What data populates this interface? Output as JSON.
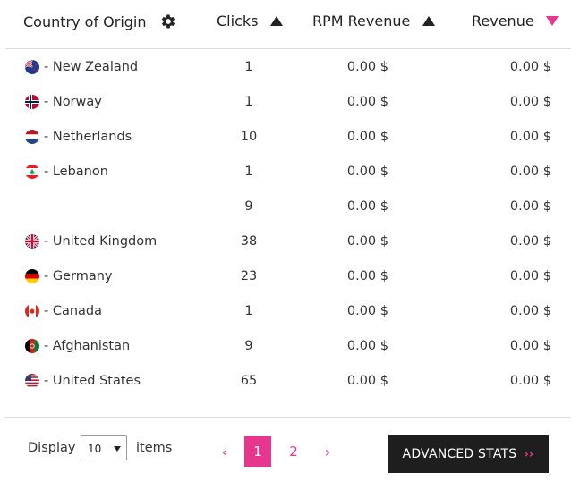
{
  "headers": {
    "country": "Country of Origin",
    "clicks": "Clicks",
    "rpm": "RPM Revenue",
    "revenue": "Revenue"
  },
  "rows": [
    {
      "flag": "nz",
      "country": "- New Zealand",
      "clicks": "1",
      "rpm": "0.00 $",
      "revenue": "0.00 $"
    },
    {
      "flag": "no",
      "country": "- Norway",
      "clicks": "1",
      "rpm": "0.00 $",
      "revenue": "0.00 $"
    },
    {
      "flag": "nl",
      "country": "- Netherlands",
      "clicks": "10",
      "rpm": "0.00 $",
      "revenue": "0.00 $"
    },
    {
      "flag": "lb",
      "country": "- Lebanon",
      "clicks": "1",
      "rpm": "0.00 $",
      "revenue": "0.00 $"
    },
    {
      "flag": "",
      "country": "",
      "clicks": "9",
      "rpm": "0.00 $",
      "revenue": "0.00 $"
    },
    {
      "flag": "gb",
      "country": "- United Kingdom",
      "clicks": "38",
      "rpm": "0.00 $",
      "revenue": "0.00 $"
    },
    {
      "flag": "de",
      "country": "- Germany",
      "clicks": "23",
      "rpm": "0.00 $",
      "revenue": "0.00 $"
    },
    {
      "flag": "ca",
      "country": "- Canada",
      "clicks": "1",
      "rpm": "0.00 $",
      "revenue": "0.00 $"
    },
    {
      "flag": "af",
      "country": "- Afghanistan",
      "clicks": "9",
      "rpm": "0.00 $",
      "revenue": "0.00 $"
    },
    {
      "flag": "us",
      "country": "- United States",
      "clicks": "65",
      "rpm": "0.00 $",
      "revenue": "0.00 $"
    }
  ],
  "footer": {
    "display_label": "Display",
    "page_size": "10",
    "items_label": "items",
    "prev": "‹",
    "pages": [
      "1",
      "2"
    ],
    "next": "›",
    "advanced_label": "ADVANCED STATS",
    "advanced_arrow": "››"
  },
  "colors": {
    "accent": "#e8368f",
    "dark": "#1e1e1e"
  },
  "icons": {
    "settings": "gear-icon",
    "sort_asc": "triangle-up-icon",
    "sort_desc": "triangle-down-icon"
  }
}
